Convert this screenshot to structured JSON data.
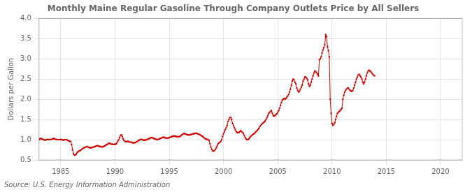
{
  "chart_data": {
    "type": "line",
    "title": "Monthly Maine Regular Gasoline Through Company Outlets Price by All Sellers",
    "ylabel": "Dollars per Gallon",
    "source": "Source: U.S. Energy Information Administration",
    "xlim": [
      1983,
      2022
    ],
    "ylim": [
      0.5,
      4.0
    ],
    "xticks": [
      1985,
      1990,
      1995,
      2000,
      2005,
      2010,
      2015,
      2020
    ],
    "yticks": [
      0.5,
      {
        "value": 1.0,
        "label": "1.0"
      },
      1.5,
      {
        "value": 2.0,
        "label": "2.0"
      },
      2.5,
      {
        "value": 3.0,
        "label": "3.0"
      },
      3.5,
      {
        "value": 4.0,
        "label": "4.0"
      }
    ],
    "grid": true,
    "color": "#CC0000",
    "marker": "square",
    "x": [
      1983,
      1983.0833333333,
      1983.1666666667,
      1983.25,
      1983.3333333333,
      1983.4166666667,
      1983.5,
      1983.5833333333,
      1983.6666666667,
      1983.75,
      1983.8333333333,
      1983.9166666667,
      1984,
      1984.0833333333,
      1984.1666666667,
      1984.25,
      1984.3333333333,
      1984.4166666667,
      1984.5,
      1984.5833333333,
      1984.6666666667,
      1984.75,
      1984.8333333333,
      1984.9166666667,
      1985,
      1985.0833333333,
      1985.1666666667,
      1985.25,
      1985.3333333333,
      1985.4166666667,
      1985.5,
      1985.5833333333,
      1985.6666666667,
      1985.75,
      1985.8333333333,
      1985.9166666667,
      1986,
      1986.0833333333,
      1986.1666666667,
      1986.25,
      1986.3333333333,
      1986.4166666667,
      1986.5,
      1986.5833333333,
      1986.6666666667,
      1986.75,
      1986.8333333333,
      1986.9166666667,
      1987,
      1987.0833333333,
      1987.1666666667,
      1987.25,
      1987.3333333333,
      1987.4166666667,
      1987.5,
      1987.5833333333,
      1987.6666666667,
      1987.75,
      1987.8333333333,
      1987.9166666667,
      1988,
      1988.0833333333,
      1988.1666666667,
      1988.25,
      1988.3333333333,
      1988.4166666667,
      1988.5,
      1988.5833333333,
      1988.6666666667,
      1988.75,
      1988.8333333333,
      1988.9166666667,
      1989,
      1989.0833333333,
      1989.1666666667,
      1989.25,
      1989.3333333333,
      1989.4166666667,
      1989.5,
      1989.5833333333,
      1989.6666666667,
      1989.75,
      1989.8333333333,
      1989.9166666667,
      1990,
      1990.0833333333,
      1990.1666666667,
      1990.25,
      1990.3333333333,
      1990.4166666667,
      1990.5,
      1990.5833333333,
      1990.6666666667,
      1990.75,
      1990.8333333333,
      1990.9166666667,
      1991,
      1991.0833333333,
      1991.1666666667,
      1991.25,
      1991.3333333333,
      1991.4166666667,
      1991.5,
      1991.5833333333,
      1991.6666666667,
      1991.75,
      1991.8333333333,
      1991.9166666667,
      1992,
      1992.0833333333,
      1992.1666666667,
      1992.25,
      1992.3333333333,
      1992.4166666667,
      1992.5,
      1992.5833333333,
      1992.6666666667,
      1992.75,
      1992.8333333333,
      1992.9166666667,
      1993,
      1993.0833333333,
      1993.1666666667,
      1993.25,
      1993.3333333333,
      1993.4166666667,
      1993.5,
      1993.5833333333,
      1993.6666666667,
      1993.75,
      1993.8333333333,
      1993.9166666667,
      1994,
      1994.0833333333,
      1994.1666666667,
      1994.25,
      1994.3333333333,
      1994.4166666667,
      1994.5,
      1994.5833333333,
      1994.6666666667,
      1994.75,
      1994.8333333333,
      1994.9166666667,
      1995,
      1995.0833333333,
      1995.1666666667,
      1995.25,
      1995.3333333333,
      1995.4166666667,
      1995.5,
      1995.5833333333,
      1995.6666666667,
      1995.75,
      1995.8333333333,
      1995.9166666667,
      1996,
      1996.0833333333,
      1996.1666666667,
      1996.25,
      1996.3333333333,
      1996.4166666667,
      1996.5,
      1996.5833333333,
      1996.6666666667,
      1996.75,
      1996.8333333333,
      1996.9166666667,
      1997,
      1997.0833333333,
      1997.1666666667,
      1997.25,
      1997.3333333333,
      1997.4166666667,
      1997.5,
      1997.5833333333,
      1997.6666666667,
      1997.75,
      1997.8333333333,
      1997.9166666667,
      1998,
      1998.0833333333,
      1998.1666666667,
      1998.25,
      1998.3333333333,
      1998.4166666667,
      1998.5,
      1998.5833333333,
      1998.6666666667,
      1998.75,
      1998.8333333333,
      1998.9166666667,
      1999,
      1999.0833333333,
      1999.1666666667,
      1999.25,
      1999.3333333333,
      1999.4166666667,
      1999.5,
      1999.5833333333,
      1999.6666666667,
      1999.75,
      1999.8333333333,
      1999.9166666667,
      2000,
      2000.0833333333,
      2000.1666666667,
      2000.25,
      2000.3333333333,
      2000.4166666667,
      2000.5,
      2000.5833333333,
      2000.6666666667,
      2000.75,
      2000.8333333333,
      2000.9166666667,
      2001,
      2001.0833333333,
      2001.1666666667,
      2001.25,
      2001.3333333333,
      2001.4166666667,
      2001.5,
      2001.5833333333,
      2001.6666666667,
      2001.75,
      2001.8333333333,
      2001.9166666667,
      2002,
      2002.0833333333,
      2002.1666666667,
      2002.25,
      2002.3333333333,
      2002.4166666667,
      2002.5,
      2002.5833333333,
      2002.6666666667,
      2002.75,
      2002.8333333333,
      2002.9166666667,
      2003,
      2003.0833333333,
      2003.1666666667,
      2003.25,
      2003.3333333333,
      2003.4166666667,
      2003.5,
      2003.5833333333,
      2003.6666666667,
      2003.75,
      2003.8333333333,
      2003.9166666667,
      2004,
      2004.0833333333,
      2004.1666666667,
      2004.25,
      2004.3333333333,
      2004.4166666667,
      2004.5,
      2004.5833333333,
      2004.6666666667,
      2004.75,
      2004.8333333333,
      2004.9166666667,
      2005,
      2005.0833333333,
      2005.1666666667,
      2005.25,
      2005.3333333333,
      2005.4166666667,
      2005.5,
      2005.5833333333,
      2005.6666666667,
      2005.75,
      2005.8333333333,
      2005.9166666667,
      2006,
      2006.0833333333,
      2006.1666666667,
      2006.25,
      2006.3333333333,
      2006.4166666667,
      2006.5,
      2006.5833333333,
      2006.6666666667,
      2006.75,
      2006.8333333333,
      2006.9166666667,
      2007,
      2007.0833333333,
      2007.1666666667,
      2007.25,
      2007.3333333333,
      2007.4166666667,
      2007.5,
      2007.5833333333,
      2007.6666666667,
      2007.75,
      2007.8333333333,
      2007.9166666667,
      2008,
      2008.0833333333,
      2008.1666666667,
      2008.25,
      2008.3333333333,
      2008.4166666667,
      2008.5,
      2008.5833333333,
      2008.6666666667,
      2008.75,
      2008.8333333333,
      2008.9166666667,
      2009,
      2009.0833333333,
      2009.1666666667,
      2009.25,
      2009.3333333333,
      2009.4166666667,
      2009.5,
      2009.5833333333,
      2009.6666666667,
      2009.75,
      2009.8333333333,
      2009.9166666667,
      2010,
      2010.0833333333,
      2010.1666666667,
      2010.25,
      2010.3333333333,
      2010.4166666667,
      2010.5,
      2010.5833333333,
      2010.6666666667,
      2010.75,
      2010.8333333333,
      2010.9166666667,
      2011,
      2011.0833333333,
      2011.1666666667,
      2011.25,
      2011.3333333333,
      2011.4166666667,
      2011.5,
      2011.5833333333,
      2011.6666666667,
      2011.75,
      2011.8333333333,
      2011.9166666667,
      2012,
      2012.0833333333,
      2012.1666666667,
      2012.25,
      2012.3333333333,
      2012.4166666667,
      2012.5,
      2012.5833333333,
      2012.6666666667,
      2012.75,
      2012.8333333333,
      2012.9166666667,
      2013,
      2013.0833333333,
      2013.1666666667,
      2013.25,
      2013.3333333333,
      2013.4166666667,
      2013.5,
      2013.5833333333,
      2013.6666666667,
      2013.75,
      2013.8333333333,
      2013.9166666667
    ],
    "values": [
      1.0,
      1.02,
      1.03,
      1.02,
      1.01,
      1.0,
      0.99,
      0.99,
      1.0,
      1.0,
      1.01,
      1.0,
      1.0,
      1.0,
      1.01,
      1.02,
      1.03,
      1.02,
      1.01,
      1.01,
      1.0,
      1.0,
      1.0,
      1.0,
      1.01,
      1.0,
      0.99,
      0.99,
      1.0,
      1.0,
      1.0,
      0.99,
      0.98,
      0.97,
      0.96,
      0.95,
      0.88,
      0.75,
      0.65,
      0.62,
      0.62,
      0.64,
      0.68,
      0.7,
      0.72,
      0.73,
      0.74,
      0.76,
      0.78,
      0.79,
      0.8,
      0.81,
      0.82,
      0.83,
      0.82,
      0.81,
      0.8,
      0.8,
      0.8,
      0.81,
      0.82,
      0.82,
      0.83,
      0.84,
      0.85,
      0.85,
      0.84,
      0.83,
      0.83,
      0.82,
      0.82,
      0.83,
      0.84,
      0.85,
      0.87,
      0.88,
      0.89,
      0.91,
      0.91,
      0.9,
      0.89,
      0.89,
      0.88,
      0.88,
      0.89,
      0.89,
      0.92,
      0.96,
      1.0,
      1.05,
      1.1,
      1.12,
      1.08,
      1.02,
      0.98,
      0.96,
      0.95,
      0.95,
      0.96,
      0.95,
      0.94,
      0.94,
      0.94,
      0.93,
      0.92,
      0.92,
      0.93,
      0.93,
      0.95,
      0.96,
      0.98,
      0.99,
      1.0,
      1.01,
      1.0,
      0.99,
      0.99,
      0.99,
      0.99,
      1.0,
      1.01,
      1.02,
      1.03,
      1.04,
      1.05,
      1.05,
      1.04,
      1.03,
      1.02,
      1.01,
      1.01,
      1.0,
      1.01,
      1.02,
      1.03,
      1.04,
      1.05,
      1.06,
      1.06,
      1.05,
      1.04,
      1.04,
      1.04,
      1.04,
      1.05,
      1.06,
      1.07,
      1.08,
      1.08,
      1.09,
      1.09,
      1.08,
      1.08,
      1.07,
      1.07,
      1.08,
      1.08,
      1.1,
      1.12,
      1.14,
      1.15,
      1.15,
      1.14,
      1.13,
      1.12,
      1.12,
      1.12,
      1.12,
      1.13,
      1.13,
      1.14,
      1.15,
      1.15,
      1.16,
      1.16,
      1.15,
      1.14,
      1.13,
      1.12,
      1.11,
      1.09,
      1.08,
      1.06,
      1.04,
      1.02,
      1.01,
      1.01,
      1.0,
      0.98,
      0.9,
      0.82,
      0.76,
      0.72,
      0.72,
      0.73,
      0.76,
      0.8,
      0.85,
      0.9,
      0.92,
      0.94,
      0.96,
      1.0,
      1.08,
      1.15,
      1.2,
      1.25,
      1.3,
      1.35,
      1.45,
      1.5,
      1.55,
      1.55,
      1.5,
      1.4,
      1.35,
      1.3,
      1.25,
      1.2,
      1.18,
      1.17,
      1.18,
      1.2,
      1.22,
      1.2,
      1.18,
      1.15,
      1.1,
      1.05,
      1.02,
      1.0,
      1.0,
      1.02,
      1.05,
      1.08,
      1.1,
      1.12,
      1.14,
      1.15,
      1.18,
      1.2,
      1.22,
      1.25,
      1.28,
      1.32,
      1.35,
      1.38,
      1.4,
      1.42,
      1.44,
      1.46,
      1.5,
      1.55,
      1.6,
      1.65,
      1.68,
      1.7,
      1.72,
      1.65,
      1.6,
      1.58,
      1.6,
      1.62,
      1.64,
      1.68,
      1.72,
      1.78,
      1.85,
      1.92,
      1.98,
      2.0,
      2.02,
      2.0,
      2.02,
      2.05,
      2.08,
      2.12,
      2.18,
      2.25,
      2.35,
      2.45,
      2.5,
      2.48,
      2.42,
      2.38,
      2.28,
      2.22,
      2.18,
      2.2,
      2.25,
      2.3,
      2.35,
      2.45,
      2.5,
      2.55,
      2.55,
      2.52,
      2.48,
      2.38,
      2.32,
      2.35,
      2.42,
      2.5,
      2.58,
      2.65,
      2.7,
      2.68,
      2.65,
      2.62,
      2.58,
      2.98,
      3.0,
      3.05,
      3.15,
      3.22,
      3.28,
      3.35,
      3.6,
      3.55,
      3.3,
      3.2,
      3.05,
      2.0,
      1.65,
      1.4,
      1.35,
      1.38,
      1.42,
      1.5,
      1.58,
      1.65,
      1.68,
      1.7,
      1.72,
      1.75,
      1.78,
      2.0,
      2.1,
      2.18,
      2.22,
      2.25,
      2.28,
      2.28,
      2.25,
      2.22,
      2.2,
      2.2,
      2.22,
      2.28,
      2.35,
      2.42,
      2.5,
      2.55,
      2.6,
      2.62,
      2.58,
      2.55,
      2.5,
      2.42,
      2.38,
      2.42,
      2.5,
      2.58,
      2.65,
      2.7,
      2.72,
      2.7,
      2.68,
      2.65,
      2.62,
      2.6,
      2.58
    ]
  }
}
